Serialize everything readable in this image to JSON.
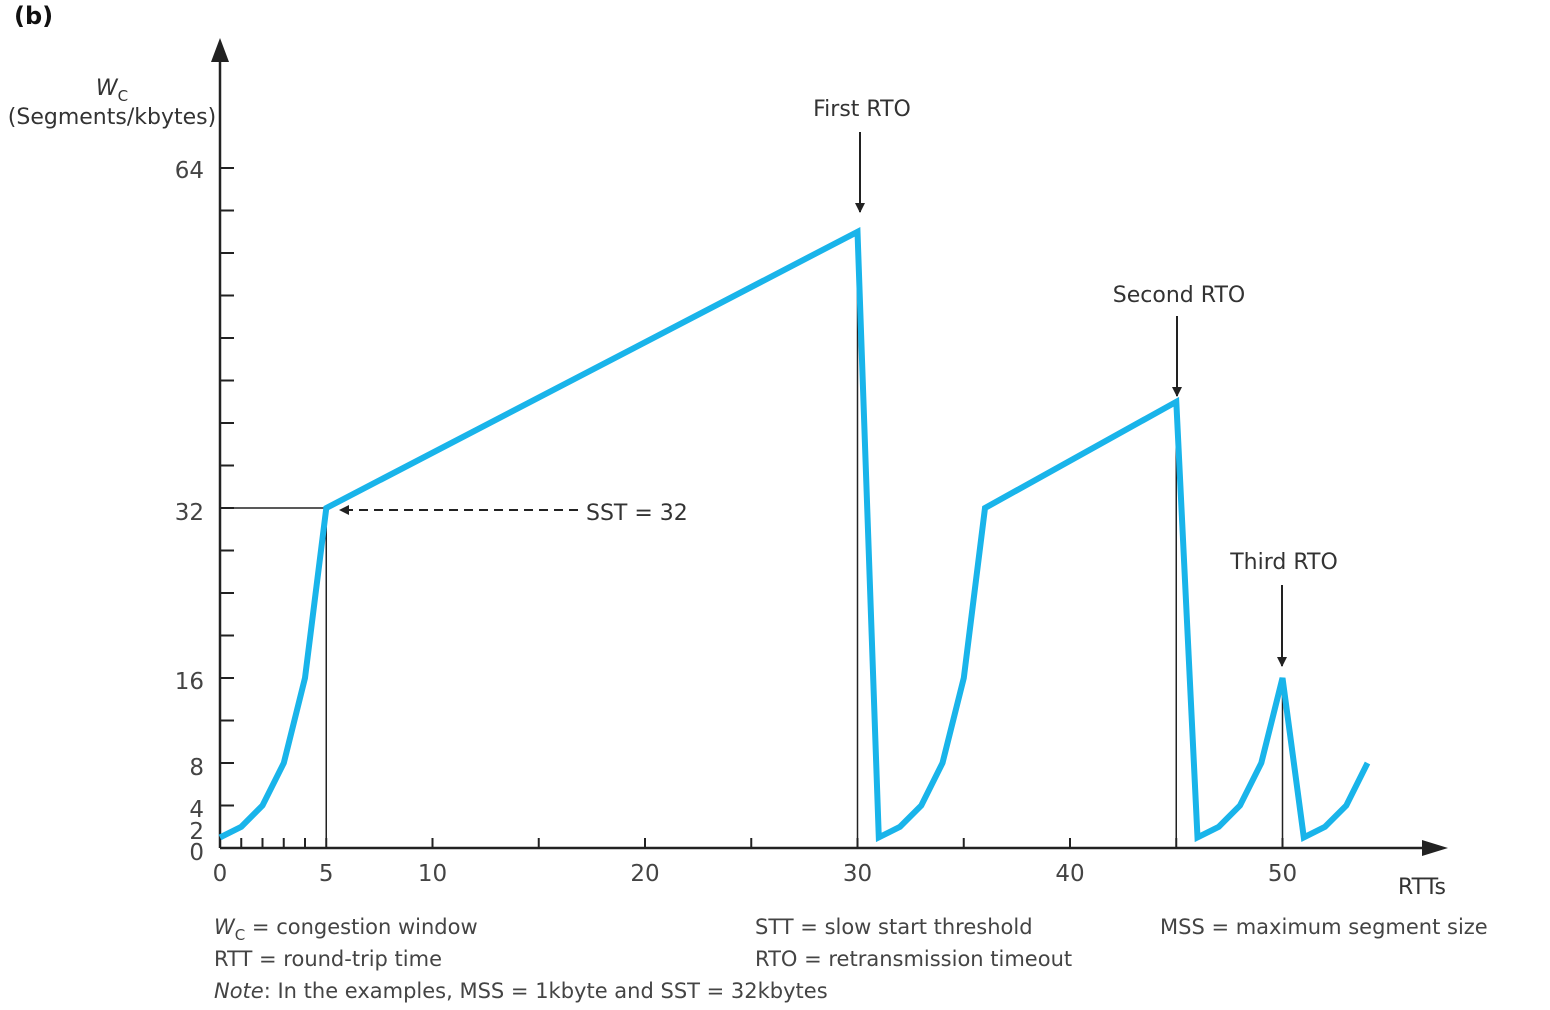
{
  "panel_label": "(b)",
  "colors": {
    "curve": "#19b4ea",
    "axis": "#222222",
    "text": "#444444"
  },
  "chart_data": {
    "type": "line",
    "title": "",
    "ylabel_symbol": "W",
    "ylabel_subscript": "C",
    "ylabel_unit": "(Segments/kbytes)",
    "xlabel": "RTTs",
    "x_ticks": [
      0,
      5,
      10,
      20,
      30,
      40,
      50
    ],
    "x_tick_labels": [
      "0",
      "5",
      "10",
      "20",
      "30",
      "40",
      "50"
    ],
    "y_ticks": [
      0,
      2,
      4,
      8,
      16,
      32,
      64
    ],
    "y_tick_labels": [
      "0",
      "2",
      "4",
      "8",
      "16",
      "32",
      "64"
    ],
    "xlim": [
      0,
      57
    ],
    "ylim": [
      0,
      64
    ],
    "series": [
      {
        "points": [
          [
            0,
            1
          ],
          [
            1,
            2
          ],
          [
            2,
            4
          ],
          [
            3,
            8
          ],
          [
            4,
            16
          ],
          [
            5,
            32
          ],
          [
            30,
            58
          ],
          [
            31,
            1
          ],
          [
            32,
            2
          ],
          [
            33,
            4
          ],
          [
            34,
            8
          ],
          [
            35,
            16
          ],
          [
            36,
            32
          ],
          [
            45,
            42
          ],
          [
            46,
            1
          ],
          [
            47,
            2
          ],
          [
            48,
            4
          ],
          [
            49,
            8
          ],
          [
            50,
            16
          ],
          [
            51,
            1
          ],
          [
            52,
            2
          ],
          [
            53,
            4
          ],
          [
            54,
            8
          ]
        ]
      }
    ],
    "annotations": {
      "sst": "SST = 32",
      "first_rto": "First RTO",
      "second_rto": "Second RTO",
      "third_rto": "Third RTO"
    },
    "rto_x": [
      30,
      45,
      50
    ],
    "sst_value": 32
  },
  "legend": {
    "wc_symbol": "W",
    "wc_sub": "C",
    "wc_text": " = congestion window",
    "rtt": "RTT = round-trip time",
    "stt": "STT = slow start threshold",
    "rto": "RTO = retransmission timeout",
    "mss": "MSS = maximum segment size",
    "note_label": "Note",
    "note_text": ": In the examples, MSS = 1kbyte and SST = 32kbytes"
  }
}
